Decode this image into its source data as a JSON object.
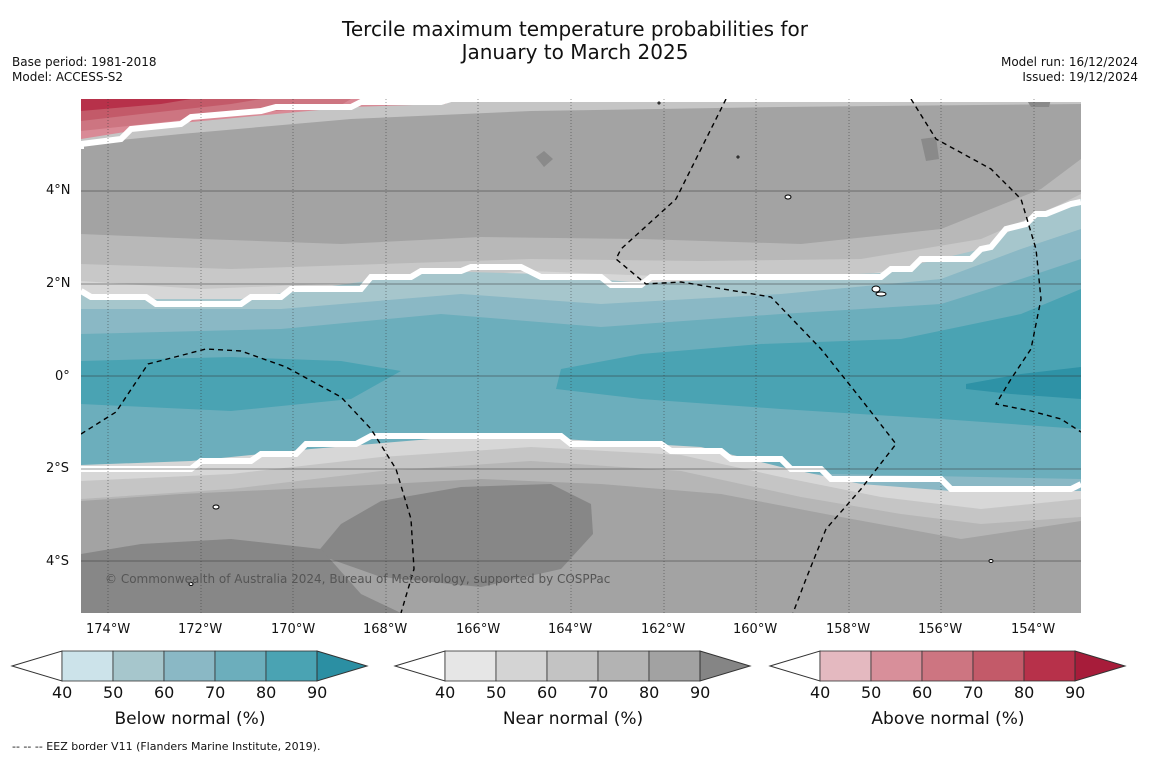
{
  "title": {
    "line1": "Tercile maximum temperature probabilities for",
    "line2": "January to March 2025"
  },
  "left_meta": {
    "base_period": "Base period: 1981-2018",
    "model": "Model: ACCESS-S2"
  },
  "right_meta": {
    "model_run": "Model run: 16/12/2024",
    "issued": "Issued: 19/12/2024"
  },
  "map": {
    "lon_labels": [
      "174°W",
      "172°W",
      "170°W",
      "168°W",
      "166°W",
      "164°W",
      "162°W",
      "160°W",
      "158°W",
      "156°W",
      "154°W"
    ],
    "lat_labels": [
      "4°N",
      "2°N",
      "0°",
      "2°S",
      "4°S"
    ],
    "copyright": "© Commonwealth of Australia 2024, Bureau of Meteorology, supported by COSPPac",
    "colors": {
      "near_normal_base": "#a3a3a3",
      "near_normal_dark": "#888888",
      "near_normal_light": "#c5c5c5",
      "below_light": "#a6c6cc",
      "below_mid": "#6caebc",
      "below_dark": "#459fb0",
      "above": "#b8283f"
    }
  },
  "colorbars": [
    {
      "title": "Below normal (%)",
      "ticks": [
        "40",
        "50",
        "60",
        "70",
        "80",
        "90"
      ],
      "colors": [
        "#cce3ea",
        "#a6c6cc",
        "#8ab8c5",
        "#6caebc",
        "#4aa3b3",
        "#2b8fa3"
      ]
    },
    {
      "title": "Near normal (%)",
      "ticks": [
        "40",
        "50",
        "60",
        "70",
        "80",
        "90"
      ],
      "colors": [
        "#e6e6e6",
        "#d4d4d4",
        "#c3c3c3",
        "#b3b3b3",
        "#a2a2a2",
        "#858585"
      ]
    },
    {
      "title": "Above normal (%)",
      "ticks": [
        "40",
        "50",
        "60",
        "70",
        "80",
        "90"
      ],
      "colors": [
        "#e4b9c0",
        "#d88f9a",
        "#cd7581",
        "#c35a69",
        "#b7314a",
        "#a71c3a"
      ]
    }
  ],
  "footnote": "--  --  -- EEZ border V11 (Flanders Marine Institute, 2019)."
}
